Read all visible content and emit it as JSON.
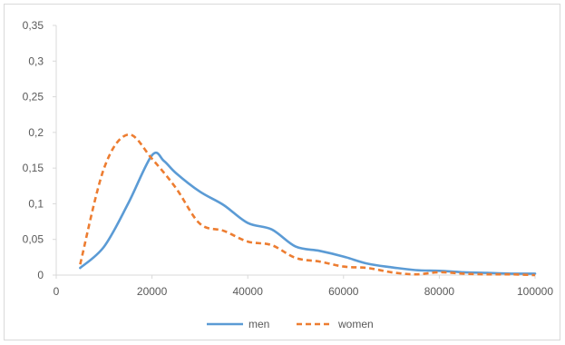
{
  "chart_data": {
    "type": "line",
    "title": "",
    "xlabel": "",
    "ylabel": "",
    "xlim": [
      0,
      100000
    ],
    "ylim": [
      0,
      0.35
    ],
    "x_ticks": [
      0,
      20000,
      40000,
      60000,
      80000,
      100000
    ],
    "x_tick_labels": [
      "0",
      "20000",
      "40000",
      "60000",
      "80000",
      "100000"
    ],
    "y_ticks": [
      0,
      0.05,
      0.1,
      0.15,
      0.2,
      0.25,
      0.3,
      0.35
    ],
    "y_tick_labels": [
      "0",
      "0,05",
      "0,1",
      "0,15",
      "0,2",
      "0,25",
      "0,3",
      "0,35"
    ],
    "grid": false,
    "legend_position": "bottom",
    "series": [
      {
        "name": "men",
        "color": "#5b9bd5",
        "style": "solid",
        "x": [
          5000,
          10000,
          15000,
          20000,
          22500,
          25000,
          30000,
          35000,
          40000,
          45000,
          50000,
          55000,
          60000,
          65000,
          70000,
          75000,
          80000,
          85000,
          90000,
          95000,
          100000
        ],
        "y": [
          0.01,
          0.04,
          0.1,
          0.168,
          0.16,
          0.143,
          0.117,
          0.098,
          0.073,
          0.064,
          0.04,
          0.034,
          0.026,
          0.016,
          0.011,
          0.007,
          0.006,
          0.004,
          0.003,
          0.002,
          0.002
        ]
      },
      {
        "name": "women",
        "color": "#ed7d31",
        "style": "dashed",
        "x": [
          5000,
          10000,
          15000,
          20000,
          25000,
          30000,
          35000,
          40000,
          45000,
          50000,
          55000,
          60000,
          65000,
          70000,
          75000,
          80000,
          85000,
          90000,
          95000,
          100000
        ],
        "y": [
          0.015,
          0.15,
          0.197,
          0.163,
          0.122,
          0.072,
          0.062,
          0.047,
          0.042,
          0.024,
          0.019,
          0.012,
          0.01,
          0.004,
          0.001,
          0.004,
          0.002,
          0.001,
          0.001,
          0.0
        ]
      }
    ]
  }
}
